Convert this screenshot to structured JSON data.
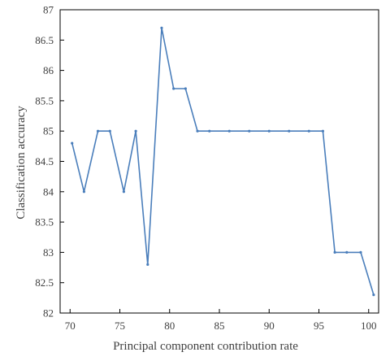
{
  "chart_data": {
    "type": "line",
    "title": "",
    "xlabel": "Principal component contribution rate",
    "ylabel": "Classification accuracy",
    "xlim": [
      69,
      101
    ],
    "ylim": [
      82,
      87
    ],
    "xticks": [
      "70",
      "75",
      "80",
      "85",
      "90",
      "95",
      "100"
    ],
    "yticks": [
      "82",
      "82.5",
      "83",
      "83.5",
      "84",
      "84.5",
      "85",
      "85.5",
      "86",
      "86.5",
      "87"
    ],
    "grid": false,
    "legend": "none",
    "line_color": "#4a7ebb",
    "series": [
      {
        "x": [
          70.2,
          71.4,
          72.8,
          74.0,
          75.4,
          76.6,
          77.8,
          79.2,
          80.4,
          81.6,
          82.8,
          84,
          86,
          88,
          90,
          92,
          94,
          95.4,
          96.6,
          97.8,
          99.2,
          100.5
        ],
        "y": [
          84.8,
          84.0,
          85.0,
          85.0,
          84.0,
          85.0,
          82.8,
          86.7,
          85.7,
          85.7,
          85.0,
          85.0,
          85.0,
          85.0,
          85.0,
          85.0,
          85.0,
          85.0,
          83.0,
          83.0,
          83.0,
          82.3
        ]
      }
    ]
  }
}
